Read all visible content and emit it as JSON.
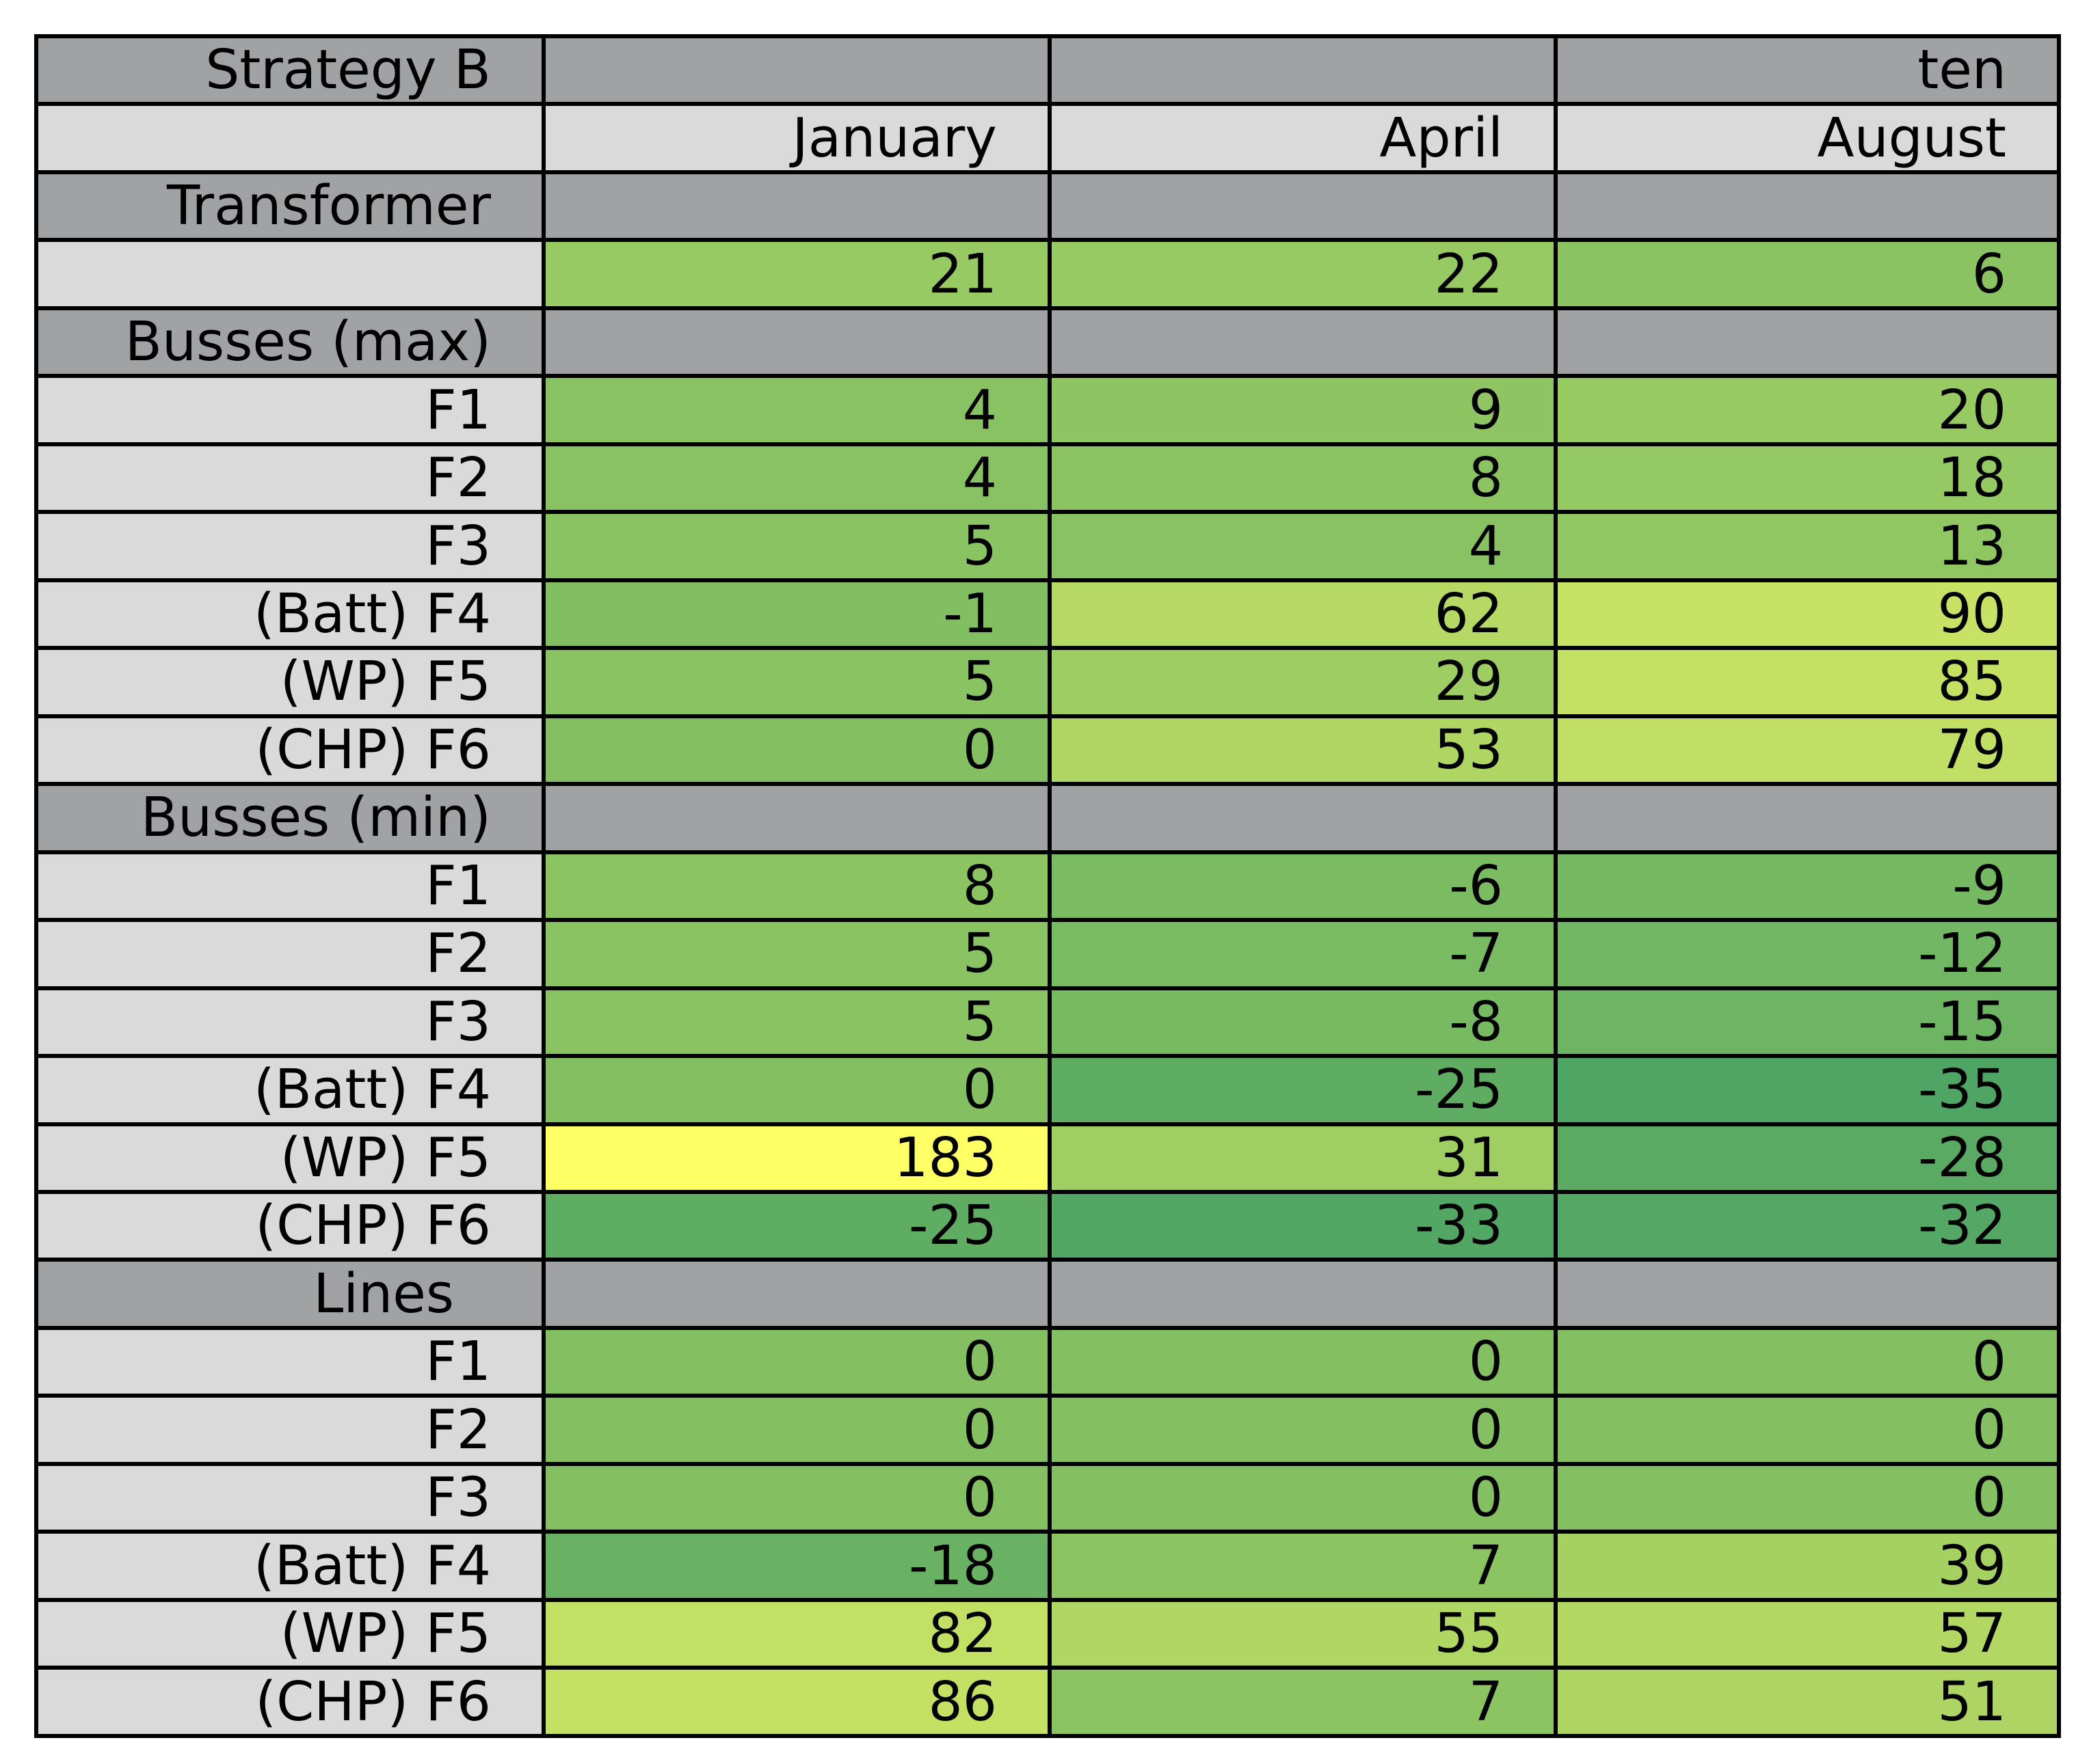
{
  "chart_data": {
    "type": "table",
    "corner_label": "Strategy B",
    "header_row_1": [
      "",
      "",
      "ten"
    ],
    "header_row_2": [
      "January",
      "April",
      "August"
    ],
    "color_scale": {
      "low": "#4fa564",
      "mid": "#84c062",
      "high": "#ffff66"
    },
    "sections": [
      {
        "title": "Transformer",
        "rows": [
          {
            "label": "",
            "values": [
              21,
              22,
              6
            ]
          }
        ]
      },
      {
        "title": "Busses (max)",
        "rows": [
          {
            "label": "F1",
            "values": [
              4,
              9,
              20
            ]
          },
          {
            "label": "F2",
            "values": [
              4,
              8,
              18
            ]
          },
          {
            "label": "F3",
            "values": [
              5,
              4,
              13
            ]
          },
          {
            "label": "(Batt) F4",
            "values": [
              -1,
              62,
              90
            ]
          },
          {
            "label": "(WP) F5",
            "values": [
              5,
              29,
              85
            ]
          },
          {
            "label": "(CHP) F6",
            "values": [
              0,
              53,
              79
            ]
          }
        ]
      },
      {
        "title": "Busses (min)",
        "rows": [
          {
            "label": "F1",
            "values": [
              8,
              -6,
              -9
            ]
          },
          {
            "label": "F2",
            "values": [
              5,
              -7,
              -12
            ]
          },
          {
            "label": "F3",
            "values": [
              5,
              -8,
              -15
            ]
          },
          {
            "label": "(Batt) F4",
            "values": [
              0,
              -25,
              -35
            ]
          },
          {
            "label": "(WP) F5",
            "values": [
              183,
              31,
              -28
            ]
          },
          {
            "label": "(CHP) F6",
            "values": [
              -25,
              -33,
              -32
            ]
          }
        ]
      },
      {
        "title": "Lines",
        "rows": [
          {
            "label": "F1",
            "values": [
              0,
              0,
              0
            ]
          },
          {
            "label": "F2",
            "values": [
              0,
              0,
              0
            ]
          },
          {
            "label": "F3",
            "values": [
              0,
              0,
              0
            ]
          },
          {
            "label": "(Batt) F4",
            "values": [
              -18,
              7,
              39
            ]
          },
          {
            "label": "(WP) F5",
            "values": [
              82,
              55,
              57
            ]
          },
          {
            "label": "(CHP) F6",
            "values": [
              86,
              7,
              51
            ]
          }
        ]
      }
    ]
  }
}
